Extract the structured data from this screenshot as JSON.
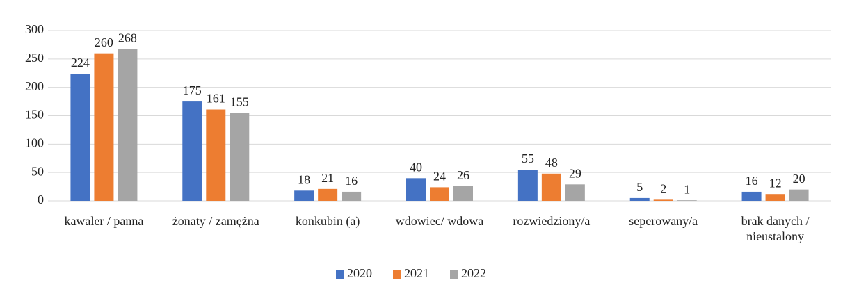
{
  "chart_data": {
    "type": "bar",
    "categories": [
      "kawaler / panna",
      "żonaty / zamężna",
      "konkubin (a)",
      "wdowiec/ wdowa",
      "rozwiedziony/a",
      "seperowany/a",
      "brak danych / nieustalony"
    ],
    "series": [
      {
        "name": "2020",
        "color": "#4472c4",
        "values": [
          224,
          175,
          18,
          40,
          55,
          5,
          16
        ]
      },
      {
        "name": "2021",
        "color": "#ed7d31",
        "values": [
          260,
          161,
          21,
          24,
          48,
          2,
          12
        ]
      },
      {
        "name": "2022",
        "color": "#a5a5a5",
        "values": [
          268,
          155,
          16,
          26,
          29,
          1,
          20
        ]
      }
    ],
    "ylim": [
      0,
      300
    ],
    "yticks": [
      0,
      50,
      100,
      150,
      200,
      250,
      300
    ],
    "grid": true,
    "legend": "bottom"
  }
}
